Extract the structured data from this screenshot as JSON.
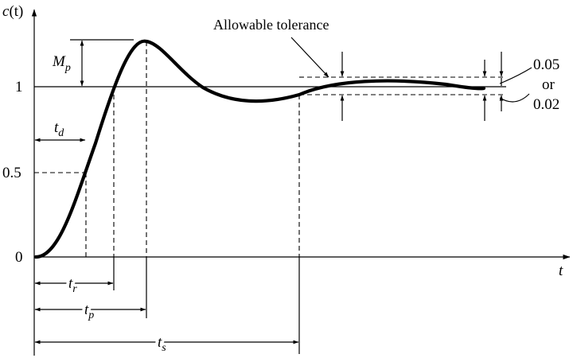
{
  "axes": {
    "y_label_main": "c",
    "y_label_paren": "(t)",
    "x_label": "t",
    "y_ticks": [
      "1",
      "0.5",
      "0"
    ]
  },
  "labels": {
    "mp_main": "M",
    "mp_sub": "p",
    "td_main": "t",
    "td_sub": "d",
    "tr_main": "t",
    "tr_sub": "r",
    "tp_main": "t",
    "tp_sub": "p",
    "ts_main": "t",
    "ts_sub": "s"
  },
  "annotation": {
    "tolerance_text": "Allowable tolerance",
    "tol_upper": "0.05",
    "tol_or": "or",
    "tol_lower": "0.02"
  }
}
